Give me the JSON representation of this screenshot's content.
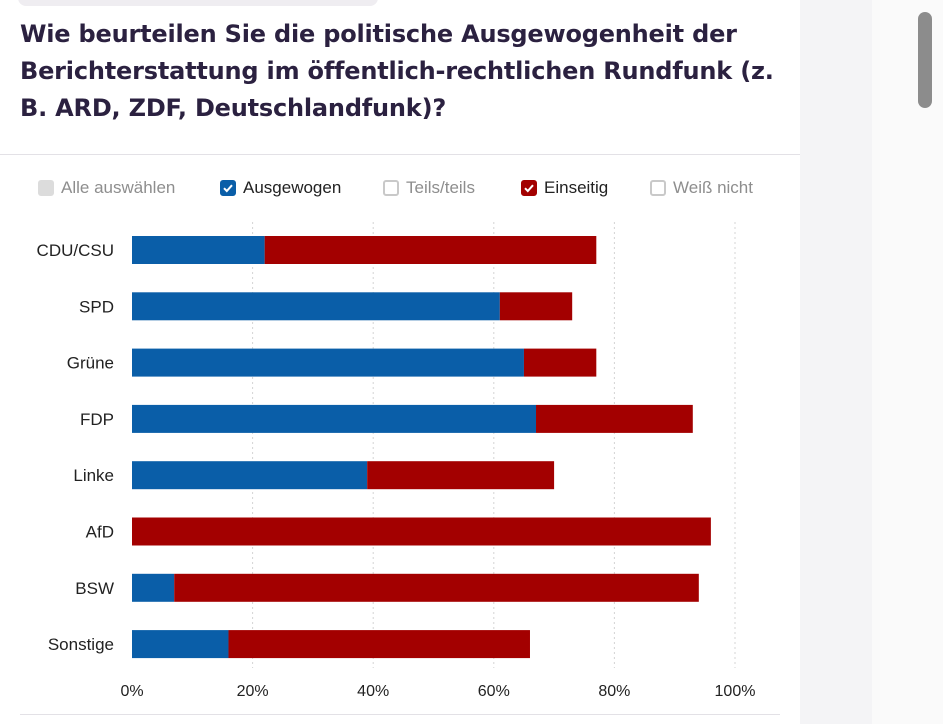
{
  "question": "Wie beurteilen Sie die politische Ausgewogenheit der Berichterstattung im öffentlich-rechtlichen Rundfunk (z. B. ARD, ZDF, Deutschlandfunk)?",
  "legend": {
    "select_all": "Alle auswählen",
    "items": [
      {
        "label": "Ausgewogen",
        "checked": true,
        "color": "#0a5ea8",
        "icon": "checked-checkbox-icon"
      },
      {
        "label": "Teils/teils",
        "checked": false,
        "color": "#a0a0a0",
        "icon": "checkbox-icon"
      },
      {
        "label": "Einseitig",
        "checked": true,
        "color": "#a30000",
        "icon": "checked-checkbox-icon"
      },
      {
        "label": "Weiß nicht",
        "checked": false,
        "color": "#a0a0a0",
        "icon": "checkbox-icon"
      }
    ]
  },
  "chart_data": {
    "type": "bar",
    "orientation": "horizontal",
    "stacked": true,
    "categories": [
      "CDU/CSU",
      "SPD",
      "Grüne",
      "FDP",
      "Linke",
      "AfD",
      "BSW",
      "Sonstige"
    ],
    "series": [
      {
        "name": "Ausgewogen",
        "color": "#0a5ea8",
        "values": [
          22,
          61,
          65,
          67,
          39,
          0,
          7,
          16
        ]
      },
      {
        "name": "Einseitig",
        "color": "#a30000",
        "values": [
          55,
          12,
          12,
          26,
          31,
          96,
          87,
          50
        ]
      }
    ],
    "xlim": [
      0,
      100
    ],
    "xticks": [
      0,
      20,
      40,
      60,
      80,
      100
    ],
    "xtick_labels": [
      "0%",
      "20%",
      "40%",
      "60%",
      "80%",
      "100%"
    ],
    "grid": "vertical dotted",
    "legend_position": "top"
  }
}
